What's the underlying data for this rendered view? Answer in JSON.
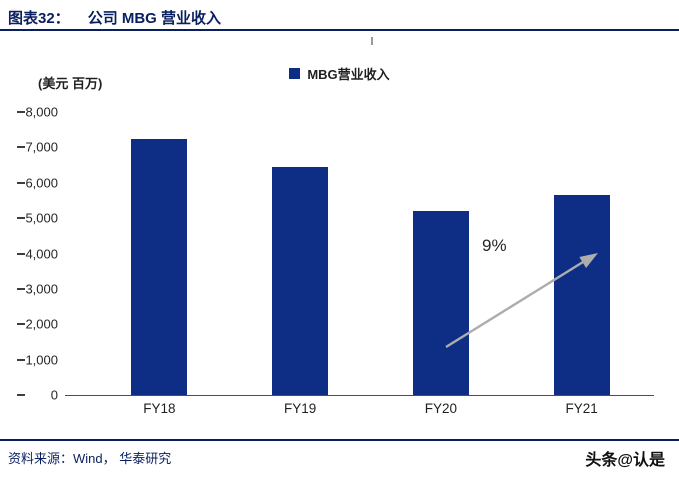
{
  "page": {
    "title_prefix": "图表32：",
    "title": "公司 MBG 营业收入"
  },
  "chart_data": {
    "type": "bar",
    "title": "公司 MBG 营业收入",
    "unit_label": "(美元 百万)",
    "legend": "MBG营业收入",
    "legend_position": "top-center",
    "categories": [
      "FY18",
      "FY19",
      "FY20",
      "FY21"
    ],
    "series": [
      {
        "name": "MBG营业收入",
        "values": [
          7250,
          6450,
          5200,
          5650
        ]
      }
    ],
    "ylim": [
      0,
      8000
    ],
    "ytick_step": 1000,
    "ytick_labels": [
      "0",
      "1,000",
      "2,000",
      "3,000",
      "4,000",
      "5,000",
      "6,000",
      "7,000",
      "8,000"
    ],
    "grid": false,
    "annotation": "9%",
    "xlabel": "",
    "ylabel": "(美元 百万)"
  },
  "footer": {
    "source": "资料来源：Wind， 华泰研究",
    "watermark": "头条@认是"
  },
  "colors": {
    "accent": "#0A1F5F",
    "bar": "#0E2E85",
    "axis": "#4D4D4D",
    "arrow": "#ADADAD",
    "text": "#1F1F1F"
  }
}
